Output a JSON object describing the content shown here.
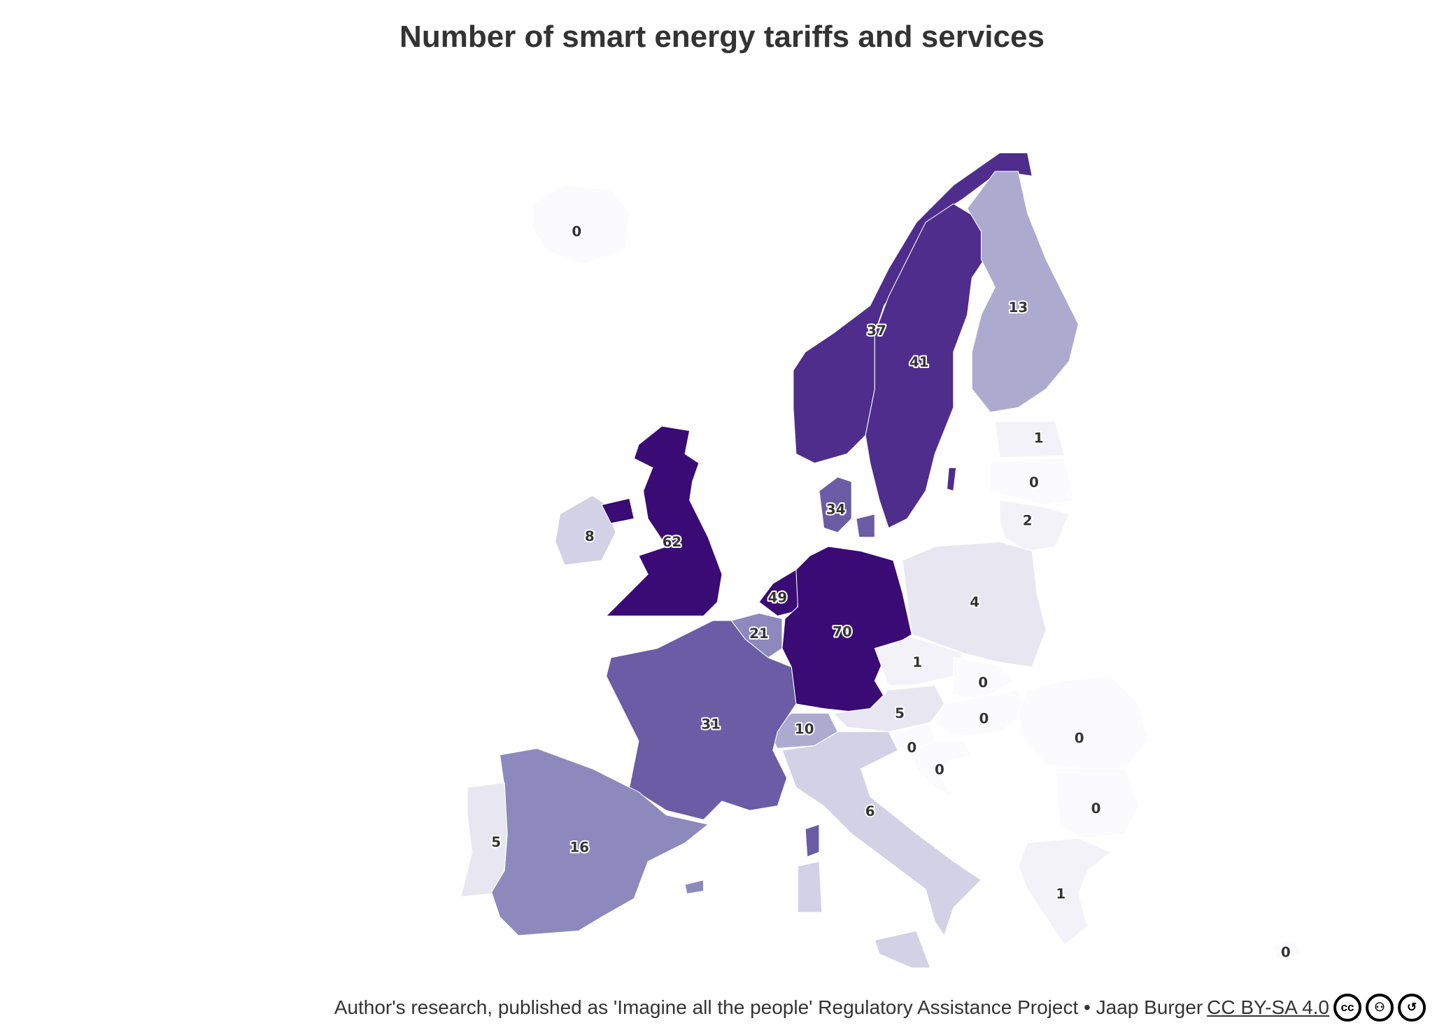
{
  "title": "Number of smart energy tariffs and services",
  "footer": {
    "source": "Author's research, published as 'Imagine all the people' Regulatory Assistance Project • Jaap Burger",
    "license": "CC BY-SA 4.0",
    "license_icons": [
      "cc-icon",
      "by-attribution-icon",
      "sa-share-alike-icon"
    ]
  },
  "color_scale": [
    "#fbfbfd",
    "#f3f2f8",
    "#e8e6f1",
    "#d2d1e5",
    "#adaad0",
    "#8d89bd",
    "#6a5ca5",
    "#4f2d8c",
    "#3a0a75"
  ],
  "chart_data": {
    "type": "choropleth",
    "title": "Number of smart energy tariffs and services",
    "regions": [
      {
        "name": "Iceland",
        "value": 0,
        "label": "0"
      },
      {
        "name": "Norway",
        "value": 37,
        "label": "37"
      },
      {
        "name": "Sweden",
        "value": 41,
        "label": "41"
      },
      {
        "name": "Finland",
        "value": 13,
        "label": "13"
      },
      {
        "name": "Estonia",
        "value": 1,
        "label": "1"
      },
      {
        "name": "Latvia",
        "value": 0,
        "label": "0"
      },
      {
        "name": "Lithuania",
        "value": 2,
        "label": "2"
      },
      {
        "name": "Denmark",
        "value": 34,
        "label": "34"
      },
      {
        "name": "Ireland",
        "value": 8,
        "label": "8"
      },
      {
        "name": "United Kingdom",
        "value": 62,
        "label": "62"
      },
      {
        "name": "Netherlands",
        "value": 49,
        "label": "49"
      },
      {
        "name": "Germany",
        "value": 70,
        "label": "70"
      },
      {
        "name": "Poland",
        "value": 4,
        "label": "4"
      },
      {
        "name": "Belgium",
        "value": 21,
        "label": "21"
      },
      {
        "name": "Czechia",
        "value": 1,
        "label": "1"
      },
      {
        "name": "Slovakia",
        "value": 0,
        "label": "0"
      },
      {
        "name": "Austria",
        "value": 5,
        "label": "5"
      },
      {
        "name": "Hungary",
        "value": 0,
        "label": "0"
      },
      {
        "name": "Slovenia",
        "value": 0,
        "label": "0"
      },
      {
        "name": "Croatia",
        "value": 0,
        "label": "0"
      },
      {
        "name": "Romania",
        "value": 0,
        "label": "0"
      },
      {
        "name": "Bulgaria",
        "value": 0,
        "label": "0"
      },
      {
        "name": "Greece",
        "value": 1,
        "label": "1"
      },
      {
        "name": "Cyprus",
        "value": 0,
        "label": "0"
      },
      {
        "name": "Switzerland",
        "value": 10,
        "label": "10"
      },
      {
        "name": "France",
        "value": 31,
        "label": "31"
      },
      {
        "name": "Italy",
        "value": 6,
        "label": "6"
      },
      {
        "name": "Spain",
        "value": 16,
        "label": "16"
      },
      {
        "name": "Portugal",
        "value": 5,
        "label": "5"
      }
    ]
  }
}
